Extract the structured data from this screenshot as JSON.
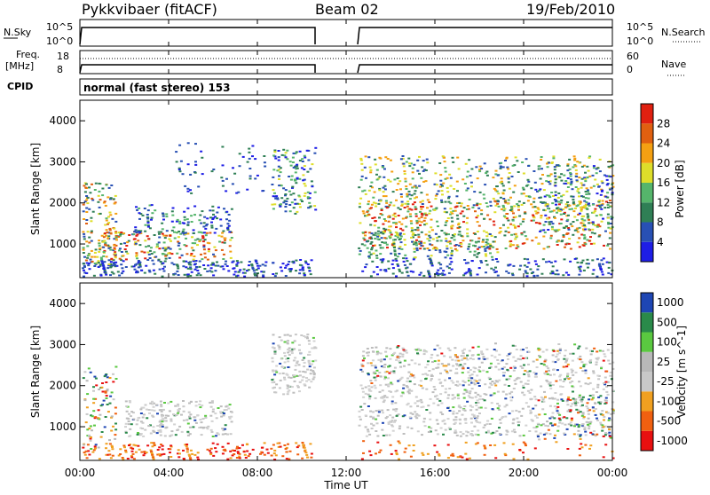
{
  "header": {
    "station": "Pykkvibaer (fitACF)",
    "beam": "Beam 02",
    "date": "19/Feb/2010"
  },
  "panels": {
    "nsky": {
      "left_label": "N.Sky",
      "left_ticks": [
        "10^5",
        "10^0"
      ],
      "right_label": "N.Search",
      "right_ticks": [
        "10^5",
        "10^0"
      ],
      "data_gap": [
        "10:25",
        "12:25"
      ]
    },
    "freq": {
      "left_label_1": "Freq.",
      "left_label_2": "[MHz]",
      "left_ticks": [
        "18",
        "8"
      ],
      "right_label": "Nave",
      "right_ticks": [
        "60",
        "0"
      ]
    },
    "cpid": {
      "label": "CPID",
      "text": "normal (fast stereo) 153"
    }
  },
  "x_axis": {
    "label": "Time UT",
    "ticks": [
      "00:00",
      "04:00",
      "08:00",
      "12:00",
      "16:00",
      "20:00",
      "00:00"
    ]
  },
  "y_axis": {
    "label": "Slant Range [km]",
    "ticks": [
      "4000",
      "3000",
      "2000",
      "1000"
    ]
  },
  "colors": {
    "power_scale": [
      "#1e1ee6",
      "#2850b4",
      "#2f7f55",
      "#55b56b",
      "#dede2a",
      "#f4a012",
      "#e06010",
      "#e02010"
    ],
    "velocity_scale": [
      "#e81010",
      "#f06010",
      "#f0a020",
      "#c8c8c8",
      "#b8b8b8",
      "#5ac840",
      "#2a8a4a",
      "#1e46b4"
    ]
  },
  "chart_data": [
    {
      "type": "heatmap",
      "title": "Power",
      "xlabel": "Time UT",
      "ylabel": "Slant Range [km]",
      "colorbar_label": "Power [dB]",
      "colorbar_ticks": [
        "28",
        "24",
        "20",
        "16",
        "12",
        "8",
        "4"
      ],
      "colorbar_range": [
        0,
        32
      ],
      "x_range": [
        "00:00",
        "24:00"
      ],
      "y_range": [
        180,
        4500
      ]
    },
    {
      "type": "heatmap",
      "title": "Velocity",
      "xlabel": "Time UT",
      "ylabel": "Slant Range [km]",
      "colorbar_label": "Velocity [m s^-1]",
      "colorbar_ticks": [
        "1000",
        "500",
        "100",
        "25",
        "-25",
        "-100",
        "-500",
        "-1000"
      ],
      "x_range": [
        "00:00",
        "24:00"
      ],
      "y_range": [
        180,
        4500
      ]
    }
  ]
}
